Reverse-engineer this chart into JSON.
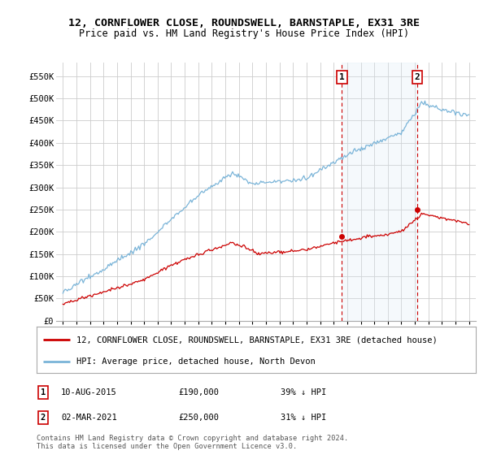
{
  "title": "12, CORNFLOWER CLOSE, ROUNDSWELL, BARNSTAPLE, EX31 3RE",
  "subtitle": "Price paid vs. HM Land Registry's House Price Index (HPI)",
  "ylabel_ticks": [
    "£0",
    "£50K",
    "£100K",
    "£150K",
    "£200K",
    "£250K",
    "£300K",
    "£350K",
    "£400K",
    "£450K",
    "£500K",
    "£550K"
  ],
  "ytick_values": [
    0,
    50000,
    100000,
    150000,
    200000,
    250000,
    300000,
    350000,
    400000,
    450000,
    500000,
    550000
  ],
  "xlim_start": 1994.5,
  "xlim_end": 2025.5,
  "ylim": [
    0,
    580000
  ],
  "hpi_color": "#7ab4d8",
  "hpi_fill_color": "#daeaf5",
  "price_color": "#cc0000",
  "vline_color": "#cc0000",
  "grid_color": "#cccccc",
  "background_color": "#ffffff",
  "sale1_x": 2015.61,
  "sale1_y": 190000,
  "sale2_x": 2021.17,
  "sale2_y": 250000,
  "legend_label_red": "12, CORNFLOWER CLOSE, ROUNDSWELL, BARNSTAPLE, EX31 3RE (detached house)",
  "legend_label_blue": "HPI: Average price, detached house, North Devon",
  "annotation1_label": "1",
  "annotation1_date": "10-AUG-2015",
  "annotation1_price": "£190,000",
  "annotation1_hpi": "39% ↓ HPI",
  "annotation2_label": "2",
  "annotation2_date": "02-MAR-2021",
  "annotation2_price": "£250,000",
  "annotation2_hpi": "31% ↓ HPI",
  "footer": "Contains HM Land Registry data © Crown copyright and database right 2024.\nThis data is licensed under the Open Government Licence v3.0.",
  "title_fontsize": 9.5,
  "subtitle_fontsize": 8.5,
  "tick_fontsize": 7.5,
  "legend_fontsize": 7.5
}
